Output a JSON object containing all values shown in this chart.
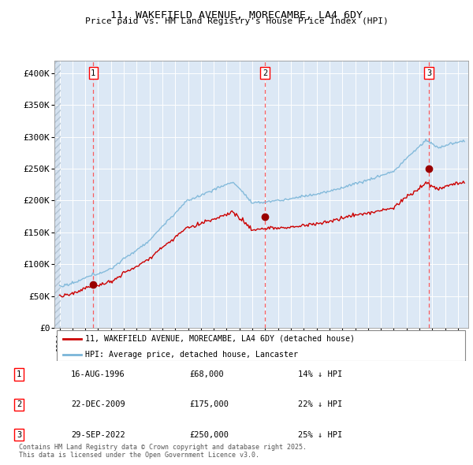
{
  "title": "11, WAKEFIELD AVENUE, MORECAMBE, LA4 6DY",
  "subtitle": "Price paid vs. HM Land Registry's House Price Index (HPI)",
  "ylim": [
    0,
    420000
  ],
  "yticks": [
    0,
    50000,
    100000,
    150000,
    200000,
    250000,
    300000,
    350000,
    400000
  ],
  "ytick_labels": [
    "£0",
    "£50K",
    "£100K",
    "£150K",
    "£200K",
    "£250K",
    "£300K",
    "£350K",
    "£400K"
  ],
  "hpi_color": "#7ab5d8",
  "price_color": "#cc0000",
  "sale_dates": [
    1996.62,
    2009.97,
    2022.74
  ],
  "sale_prices": [
    68000,
    175000,
    250000
  ],
  "legend_line1": "11, WAKEFIELD AVENUE, MORECAMBE, LA4 6DY (detached house)",
  "legend_line2": "HPI: Average price, detached house, Lancaster",
  "table_rows": [
    [
      "1",
      "16-AUG-1996",
      "£68,000",
      "14% ↓ HPI"
    ],
    [
      "2",
      "22-DEC-2009",
      "£175,000",
      "22% ↓ HPI"
    ],
    [
      "3",
      "29-SEP-2022",
      "£250,000",
      "25% ↓ HPI"
    ]
  ],
  "footnote": "Contains HM Land Registry data © Crown copyright and database right 2025.\nThis data is licensed under the Open Government Licence v3.0.",
  "plot_bg_color": "#dce8f5",
  "grid_color": "#ffffff",
  "hatch_color": "#c8d8e8"
}
